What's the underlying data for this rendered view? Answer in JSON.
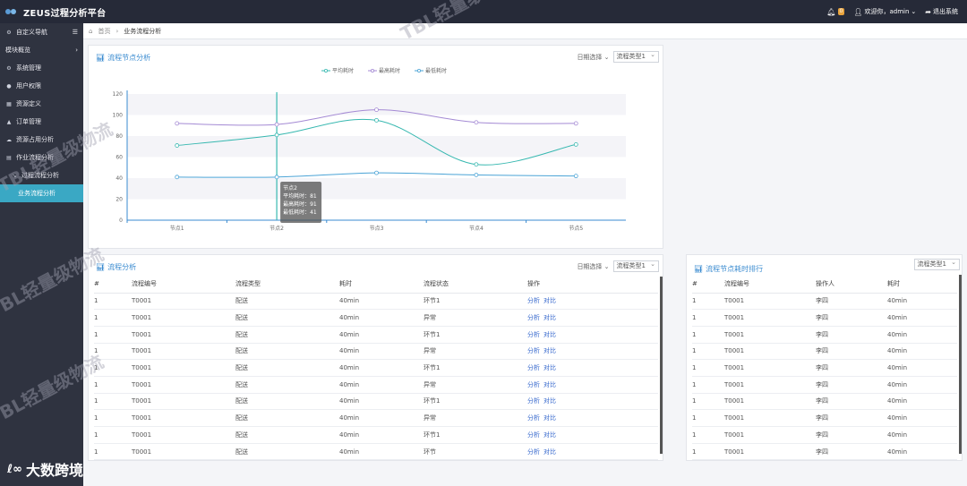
{
  "app": {
    "title": "ZEUS过程分析平台",
    "welcome": "欢迎你，admin",
    "notif_count": "0",
    "logout": "退出系统"
  },
  "sidebar": {
    "header": "自定义导航",
    "group": "模块概览",
    "items": [
      {
        "label": "系统管理",
        "icon": "gear-icon"
      },
      {
        "label": "用户权限",
        "icon": "user-icon"
      },
      {
        "label": "资源定义",
        "icon": "list-icon"
      },
      {
        "label": "订单管理",
        "icon": "cart-icon"
      },
      {
        "label": "资源占用分析",
        "icon": "cloud-icon"
      },
      {
        "label": "作业流程分析",
        "icon": "doc-icon"
      },
      {
        "label": "过程流程分析",
        "icon": "chart-icon"
      }
    ],
    "active": "业务流程分析"
  },
  "breadcrumb": {
    "home": "首页",
    "current": "业务流程分析"
  },
  "chart_panel": {
    "title": "流程节点分析",
    "date_label": "日期选择",
    "select_value": "流程类型1"
  },
  "chart_data": {
    "type": "line",
    "categories": [
      "节点1",
      "节点2",
      "节点3",
      "节点4",
      "节点5"
    ],
    "series": [
      {
        "name": "平均耗时",
        "values": [
          71,
          81,
          95,
          53,
          72
        ],
        "color": "#37b8b0"
      },
      {
        "name": "最高耗时",
        "values": [
          92,
          91,
          105,
          93,
          92
        ],
        "color": "#a48ad4"
      },
      {
        "name": "最低耗时",
        "values": [
          41,
          41,
          45,
          43,
          42
        ],
        "color": "#4aa3d6"
      }
    ],
    "ylim": [
      0,
      120
    ],
    "yticks": [
      0,
      20,
      40,
      60,
      80,
      100,
      120
    ],
    "grid": true,
    "legend": "top-center",
    "tooltip": {
      "title": "节点2",
      "lines": [
        "平均耗时：81",
        "最高耗时：91",
        "最低耗时：41"
      ]
    }
  },
  "flow_table": {
    "title": "流程分析",
    "date_label": "日期选择",
    "select_value": "流程类型1",
    "columns": [
      "#",
      "流程编号",
      "流程类型",
      "耗时",
      "流程状态",
      "操作"
    ],
    "op_analyze": "分析",
    "op_compare": "对比",
    "rows": [
      [
        "1",
        "T0001",
        "配送",
        "40min",
        "环节1"
      ],
      [
        "1",
        "T0001",
        "配送",
        "40min",
        "异常"
      ],
      [
        "1",
        "T0001",
        "配送",
        "40min",
        "环节1"
      ],
      [
        "1",
        "T0001",
        "配送",
        "40min",
        "异常"
      ],
      [
        "1",
        "T0001",
        "配送",
        "40min",
        "环节1"
      ],
      [
        "1",
        "T0001",
        "配送",
        "40min",
        "异常"
      ],
      [
        "1",
        "T0001",
        "配送",
        "40min",
        "环节1"
      ],
      [
        "1",
        "T0001",
        "配送",
        "40min",
        "异常"
      ],
      [
        "1",
        "T0001",
        "配送",
        "40min",
        "环节1"
      ],
      [
        "1",
        "T0001",
        "配送",
        "40min",
        "环节"
      ]
    ]
  },
  "rank_table": {
    "title": "流程节点耗时排行",
    "select_value": "流程类型1",
    "columns": [
      "#",
      "流程编号",
      "操作人",
      "耗时"
    ],
    "rows": [
      [
        "1",
        "T0001",
        "李四",
        "40min"
      ],
      [
        "1",
        "T0001",
        "李四",
        "40min"
      ],
      [
        "1",
        "T0001",
        "李四",
        "40min"
      ],
      [
        "1",
        "T0001",
        "李四",
        "40min"
      ],
      [
        "1",
        "T0001",
        "李四",
        "40min"
      ],
      [
        "1",
        "T0001",
        "李四",
        "40min"
      ],
      [
        "1",
        "T0001",
        "李四",
        "40min"
      ],
      [
        "1",
        "T0001",
        "李四",
        "40min"
      ],
      [
        "1",
        "T0001",
        "李四",
        "40min"
      ],
      [
        "1",
        "T0001",
        "李四",
        "40min"
      ]
    ]
  },
  "watermarks": {
    "main": "TBL轻量级物流",
    "brand": "大数跨境"
  }
}
